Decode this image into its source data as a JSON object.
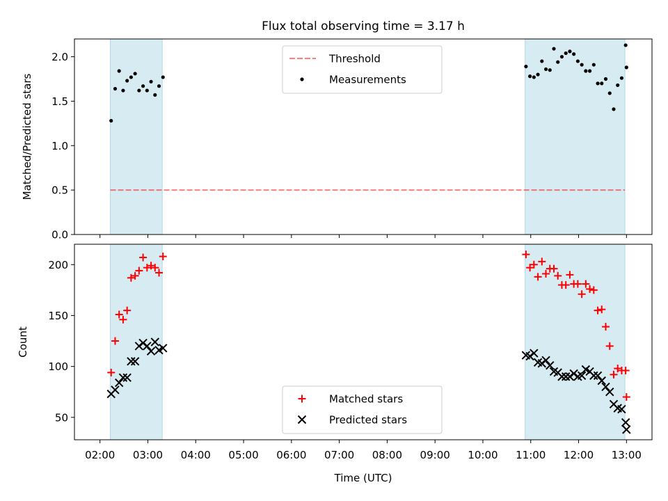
{
  "figure": {
    "title": "Flux total observing time = 3.17 h",
    "xlabel": "Time (UTC)"
  },
  "colors": {
    "shade": "#add8e6",
    "threshold": "#ff0000",
    "measurement": "#000000",
    "matched": "#ff0000",
    "predicted": "#000000"
  },
  "chart_data": [
    {
      "type": "scatter",
      "panel": "top",
      "ylabel": "Matched/Predicted stars",
      "xlim": [
        "01:28",
        "13:32"
      ],
      "ylim": [
        0,
        2.2
      ],
      "yticks": [
        0.0,
        0.5,
        1.0,
        1.5,
        2.0
      ],
      "ytick_labels": [
        "0.0",
        "0.5",
        "1.0",
        "1.5",
        "2.0"
      ],
      "shaded_intervals": [
        [
          "02:13",
          "03:18"
        ],
        [
          "10:53",
          "12:58"
        ]
      ],
      "threshold": {
        "name": "Threshold",
        "value": 0.5,
        "x_range": [
          "02:13",
          "12:58"
        ]
      },
      "legend": {
        "placement": "upper center",
        "entries": [
          "Threshold",
          "Measurements"
        ]
      },
      "series": [
        {
          "name": "Measurements",
          "x": [
            "02:14",
            "02:19",
            "02:24",
            "02:29",
            "02:34",
            "02:39",
            "02:44",
            "02:49",
            "02:54",
            "02:59",
            "03:04",
            "03:09",
            "03:14",
            "03:19",
            "10:54",
            "10:59",
            "11:04",
            "11:09",
            "11:14",
            "11:19",
            "11:24",
            "11:29",
            "11:34",
            "11:39",
            "11:44",
            "11:49",
            "11:54",
            "11:59",
            "12:04",
            "12:09",
            "12:14",
            "12:19",
            "12:24",
            "12:29",
            "12:34",
            "12:39",
            "12:44",
            "12:49",
            "12:54",
            "12:59",
            "13:00"
          ],
          "y": [
            1.28,
            1.64,
            1.84,
            1.62,
            1.73,
            1.77,
            1.81,
            1.62,
            1.67,
            1.62,
            1.72,
            1.57,
            1.67,
            1.77,
            1.89,
            1.78,
            1.77,
            1.8,
            1.95,
            1.86,
            1.85,
            2.09,
            1.94,
            2.0,
            2.04,
            2.06,
            2.03,
            1.95,
            1.91,
            1.84,
            1.84,
            1.91,
            1.7,
            1.7,
            1.75,
            1.59,
            1.41,
            1.68,
            1.76,
            2.13,
            1.88
          ]
        }
      ]
    },
    {
      "type": "scatter",
      "panel": "bottom",
      "ylabel": "Count",
      "xlim": [
        "01:28",
        "13:32"
      ],
      "ylim": [
        28,
        220
      ],
      "yticks": [
        50,
        100,
        150,
        200
      ],
      "ytick_labels": [
        "50",
        "100",
        "150",
        "200"
      ],
      "xticks": [
        "02:00",
        "03:00",
        "04:00",
        "05:00",
        "06:00",
        "07:00",
        "08:00",
        "09:00",
        "10:00",
        "11:00",
        "12:00",
        "13:00"
      ],
      "shaded_intervals": [
        [
          "02:13",
          "03:18"
        ],
        [
          "10:53",
          "12:58"
        ]
      ],
      "legend": {
        "placement": "lower center",
        "entries": [
          "Matched stars",
          "Predicted stars"
        ]
      },
      "series": [
        {
          "name": "Matched stars",
          "marker": "plus",
          "x": [
            "02:14",
            "02:19",
            "02:24",
            "02:29",
            "02:34",
            "02:39",
            "02:44",
            "02:49",
            "02:54",
            "02:59",
            "03:04",
            "03:09",
            "03:14",
            "03:19",
            "10:54",
            "10:59",
            "11:04",
            "11:09",
            "11:14",
            "11:19",
            "11:24",
            "11:29",
            "11:34",
            "11:39",
            "11:44",
            "11:49",
            "11:54",
            "11:59",
            "12:04",
            "12:09",
            "12:14",
            "12:19",
            "12:24",
            "12:29",
            "12:34",
            "12:39",
            "12:44",
            "12:49",
            "12:54",
            "12:59",
            "13:00"
          ],
          "y": [
            94,
            125,
            151,
            146,
            155,
            187,
            189,
            194,
            207,
            197,
            199,
            197,
            192,
            208,
            210,
            197,
            200,
            188,
            203,
            191,
            196,
            196,
            189,
            180,
            180,
            190,
            181,
            181,
            171,
            181,
            176,
            175,
            155,
            156,
            139,
            120,
            92,
            98,
            96,
            96,
            70
          ]
        },
        {
          "name": "Predicted stars",
          "marker": "x",
          "x": [
            "02:14",
            "02:19",
            "02:24",
            "02:29",
            "02:34",
            "02:39",
            "02:44",
            "02:49",
            "02:54",
            "02:59",
            "03:04",
            "03:09",
            "03:14",
            "03:19",
            "10:54",
            "10:59",
            "11:04",
            "11:09",
            "11:14",
            "11:19",
            "11:24",
            "11:29",
            "11:34",
            "11:39",
            "11:44",
            "11:49",
            "11:54",
            "11:59",
            "12:04",
            "12:09",
            "12:14",
            "12:19",
            "12:24",
            "12:29",
            "12:34",
            "12:39",
            "12:44",
            "12:49",
            "12:54",
            "12:59",
            "13:00"
          ],
          "y": [
            73,
            77,
            84,
            89,
            89,
            105,
            105,
            120,
            123,
            120,
            115,
            124,
            116,
            118,
            111,
            110,
            113,
            104,
            103,
            106,
            101,
            95,
            94,
            90,
            90,
            90,
            93,
            90,
            91,
            97,
            95,
            91,
            91,
            86,
            80,
            75,
            63,
            59,
            58,
            45,
            38
          ]
        }
      ]
    }
  ]
}
